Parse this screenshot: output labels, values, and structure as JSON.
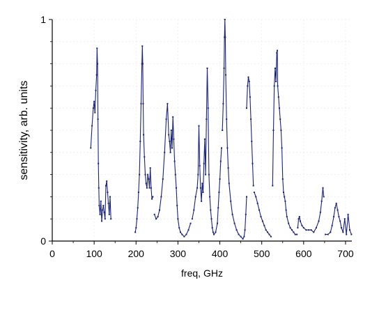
{
  "chart_data": {
    "type": "scatter",
    "xlabel": "freq, GHz",
    "ylabel": "sensitivity, arb. units",
    "xlim": [
      0,
      715
    ],
    "ylim": [
      0,
      1
    ],
    "x_ticks": [
      0,
      100,
      200,
      300,
      400,
      500,
      600,
      700
    ],
    "x_tick_labels": [
      "0",
      "100",
      "200",
      "300",
      "400",
      "500",
      "600",
      "700"
    ],
    "y_ticks": [
      0,
      1
    ],
    "y_tick_labels": [
      "0",
      "1"
    ],
    "grid": true,
    "legend": "none",
    "series": [
      {
        "color": "#1a237e",
        "segments": [
          {
            "x": [
              92,
              95,
              98,
              100,
              102,
              104,
              106,
              107,
              108,
              109,
              110,
              111,
              112,
              114,
              116,
              118,
              120,
              122,
              124,
              126,
              128,
              130,
              132,
              134,
              136,
              138,
              140
            ],
            "y": [
              0.42,
              0.52,
              0.6,
              0.63,
              0.58,
              0.68,
              0.75,
              0.87,
              0.8,
              0.55,
              0.35,
              0.24,
              0.16,
              0.12,
              0.18,
              0.09,
              0.14,
              0.16,
              0.13,
              0.1,
              0.25,
              0.27,
              0.22,
              0.17,
              0.12,
              0.2,
              0.1
            ]
          },
          {
            "x": [
              198,
              200,
              202,
              204,
              206,
              208,
              210,
              212,
              214,
              215,
              216,
              217,
              218,
              220,
              222,
              224,
              226,
              228,
              230,
              232,
              234,
              236,
              238,
              240
            ],
            "y": [
              0.04,
              0.06,
              0.1,
              0.15,
              0.22,
              0.3,
              0.45,
              0.62,
              0.8,
              0.88,
              0.8,
              0.62,
              0.48,
              0.38,
              0.3,
              0.26,
              0.24,
              0.3,
              0.28,
              0.24,
              0.33,
              0.24,
              0.19,
              0.2
            ]
          },
          {
            "x": [
              244,
              248,
              252,
              256,
              260,
              264,
              268,
              272,
              275,
              278,
              280,
              282,
              284,
              286,
              288,
              290,
              292,
              294,
              296,
              298,
              300,
              303,
              306,
              310,
              315,
              320,
              325,
              330
            ],
            "y": [
              0.12,
              0.1,
              0.11,
              0.14,
              0.2,
              0.28,
              0.4,
              0.55,
              0.62,
              0.48,
              0.45,
              0.4,
              0.5,
              0.42,
              0.56,
              0.46,
              0.36,
              0.3,
              0.24,
              0.16,
              0.1,
              0.06,
              0.04,
              0.03,
              0.02,
              0.03,
              0.05,
              0.08
            ]
          },
          {
            "x": [
              334,
              338,
              342,
              346,
              348,
              350,
              352,
              354,
              356,
              358,
              360,
              362,
              364,
              366,
              368,
              370,
              372,
              374,
              376,
              378,
              380,
              382,
              384,
              386,
              390,
              394,
              396,
              398,
              400,
              402,
              404
            ],
            "y": [
              0.1,
              0.14,
              0.2,
              0.24,
              0.3,
              0.52,
              0.34,
              0.24,
              0.18,
              0.26,
              0.22,
              0.35,
              0.46,
              0.3,
              0.55,
              0.78,
              0.6,
              0.3,
              0.2,
              0.14,
              0.1,
              0.06,
              0.04,
              0.03,
              0.04,
              0.08,
              0.15,
              0.22,
              0.28,
              0.36,
              0.42
            ]
          },
          {
            "x": [
              406,
              408,
              410,
              411,
              412,
              413,
              414,
              416,
              418,
              420,
              422,
              426,
              430,
              435,
              440,
              445,
              450,
              455,
              458,
              460,
              462,
              464
            ],
            "y": [
              0.5,
              0.62,
              0.78,
              0.92,
              1.0,
              0.92,
              0.75,
              0.55,
              0.42,
              0.33,
              0.26,
              0.18,
              0.12,
              0.08,
              0.05,
              0.03,
              0.02,
              0.01,
              0.02,
              0.05,
              0.12,
              0.2
            ]
          },
          {
            "x": [
              464,
              466,
              468,
              470,
              472,
              474,
              476,
              478,
              480
            ],
            "y": [
              0.6,
              0.7,
              0.74,
              0.72,
              0.65,
              0.55,
              0.45,
              0.35,
              0.25
            ]
          },
          {
            "x": [
              482,
              486,
              490,
              494,
              498,
              502,
              506,
              510,
              514,
              518,
              522
            ],
            "y": [
              0.22,
              0.2,
              0.17,
              0.14,
              0.11,
              0.09,
              0.07,
              0.05,
              0.04,
              0.03,
              0.02
            ]
          },
          {
            "x": [
              526,
              528,
              530,
              532,
              534,
              536,
              537,
              538,
              540,
              542,
              544,
              546,
              548,
              550,
              552,
              554,
              556,
              558,
              560,
              564,
              568,
              572,
              576,
              580,
              584
            ],
            "y": [
              0.25,
              0.5,
              0.7,
              0.78,
              0.72,
              0.85,
              0.86,
              0.7,
              0.65,
              0.6,
              0.55,
              0.5,
              0.42,
              0.28,
              0.22,
              0.2,
              0.18,
              0.14,
              0.11,
              0.08,
              0.06,
              0.05,
              0.04,
              0.03,
              0.03
            ]
          },
          {
            "x": [
              586,
              588,
              590,
              592,
              596,
              600,
              606,
              612,
              618,
              624,
              630,
              636,
              640,
              643,
              646,
              648
            ],
            "y": [
              0.06,
              0.1,
              0.11,
              0.09,
              0.07,
              0.06,
              0.05,
              0.05,
              0.05,
              0.04,
              0.06,
              0.09,
              0.13,
              0.18,
              0.24,
              0.2
            ]
          },
          {
            "x": [
              652,
              658,
              664,
              668,
              672,
              675,
              678,
              681,
              684,
              687,
              690,
              694,
              698,
              702,
              706,
              710,
              714
            ],
            "y": [
              0.03,
              0.03,
              0.04,
              0.07,
              0.11,
              0.15,
              0.17,
              0.14,
              0.11,
              0.09,
              0.06,
              0.04,
              0.1,
              0.03,
              0.12,
              0.05,
              0.03
            ]
          }
        ]
      }
    ]
  }
}
